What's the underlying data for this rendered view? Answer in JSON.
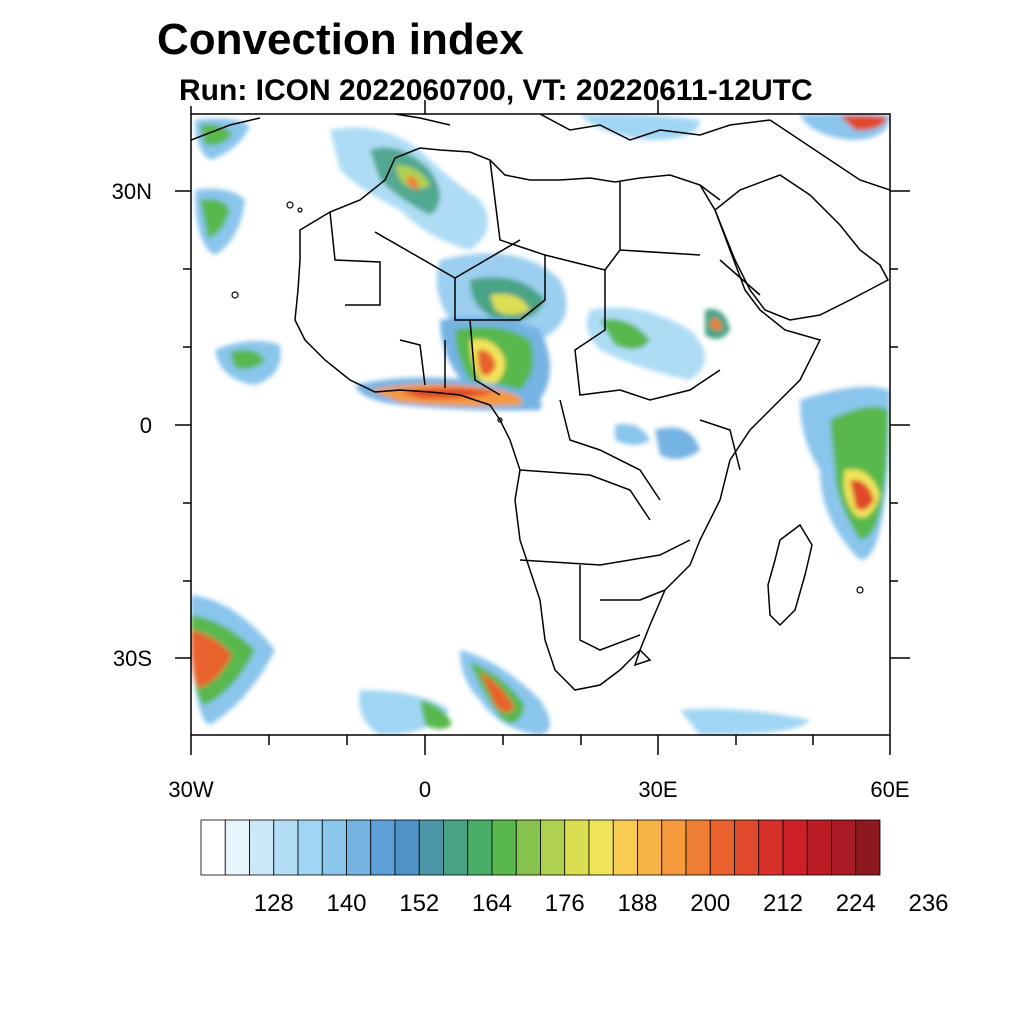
{
  "title": "Convection index",
  "subtitle": "Run: ICON 2022060700,  VT: 20220611-12UTC",
  "lat_labels": [
    "30N",
    "0",
    "30S"
  ],
  "lon_labels": [
    "30W",
    "0",
    "30E",
    "60E"
  ],
  "colorbar": {
    "colors": [
      "#ffffff",
      "#e8f4fc",
      "#cde9f8",
      "#b4def6",
      "#a0d6f3",
      "#8ac5ec",
      "#75b3e3",
      "#5fa0d8",
      "#4f92c8",
      "#4b97a8",
      "#48a385",
      "#4aad67",
      "#58b84e",
      "#86c24e",
      "#b0d14f",
      "#dcde52",
      "#f2e45a",
      "#f8cc50",
      "#f6b446",
      "#f5993d",
      "#ef7d34",
      "#e8622d",
      "#e04a2a",
      "#d83129",
      "#cd2028",
      "#bb1c26",
      "#a81a24",
      "#8c1820"
    ],
    "tick_labels": [
      "128",
      "140",
      "152",
      "164",
      "176",
      "188",
      "200",
      "212",
      "224",
      "236"
    ]
  }
}
